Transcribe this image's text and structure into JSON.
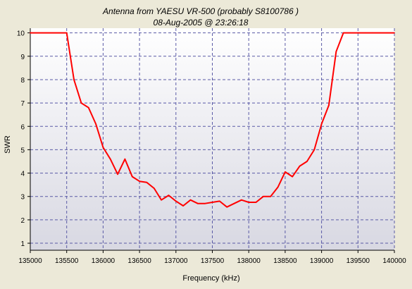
{
  "chart_data": {
    "type": "line",
    "title": "Antenna from YAESU VR-500 (probably S8100786 )",
    "subtitle": "08-Aug-2005 @ 23:26:18",
    "xlabel": "Frequency (kHz)",
    "ylabel": "SWR",
    "xlim": [
      135000,
      140000
    ],
    "ylim": [
      1,
      10
    ],
    "x_ticks": [
      "135000",
      "135500",
      "136000",
      "136500",
      "137000",
      "137500",
      "138000",
      "138500",
      "139000",
      "139500",
      "140000"
    ],
    "y_ticks": [
      "1",
      "2",
      "3",
      "4",
      "5",
      "6",
      "7",
      "8",
      "9",
      "10"
    ],
    "grid": true,
    "legend": "none",
    "colors": {
      "line": "#ff0000",
      "grid": "#5a5aa6",
      "plot_bg_top": "#ffffff",
      "plot_bg_bottom": "#d8d8e2"
    },
    "series": [
      {
        "x": [
          135000,
          135500,
          135600,
          135700,
          135800,
          135900,
          136000,
          136100,
          136200,
          136300,
          136400,
          136500,
          136600,
          136700,
          136800,
          136900,
          137000,
          137100,
          137200,
          137300,
          137400,
          137500,
          137600,
          137700,
          137800,
          137900,
          138000,
          138100,
          138200,
          138300,
          138400,
          138500,
          138600,
          138700,
          138800,
          138900,
          139000,
          139100,
          139200,
          139300,
          139400,
          139500,
          139600,
          139700,
          139800,
          139900,
          140000
        ],
        "y": [
          10,
          10,
          8.0,
          7.0,
          6.8,
          6.1,
          5.1,
          4.6,
          3.95,
          4.6,
          3.85,
          3.65,
          3.6,
          3.35,
          2.85,
          3.05,
          2.8,
          2.6,
          2.85,
          2.7,
          2.7,
          2.75,
          2.8,
          2.55,
          2.7,
          2.85,
          2.75,
          2.75,
          3.0,
          3.0,
          3.4,
          4.05,
          3.85,
          4.3,
          4.5,
          5.0,
          6.1,
          6.9,
          9.2,
          10,
          10,
          10,
          10,
          10,
          10,
          10,
          10
        ]
      }
    ]
  }
}
